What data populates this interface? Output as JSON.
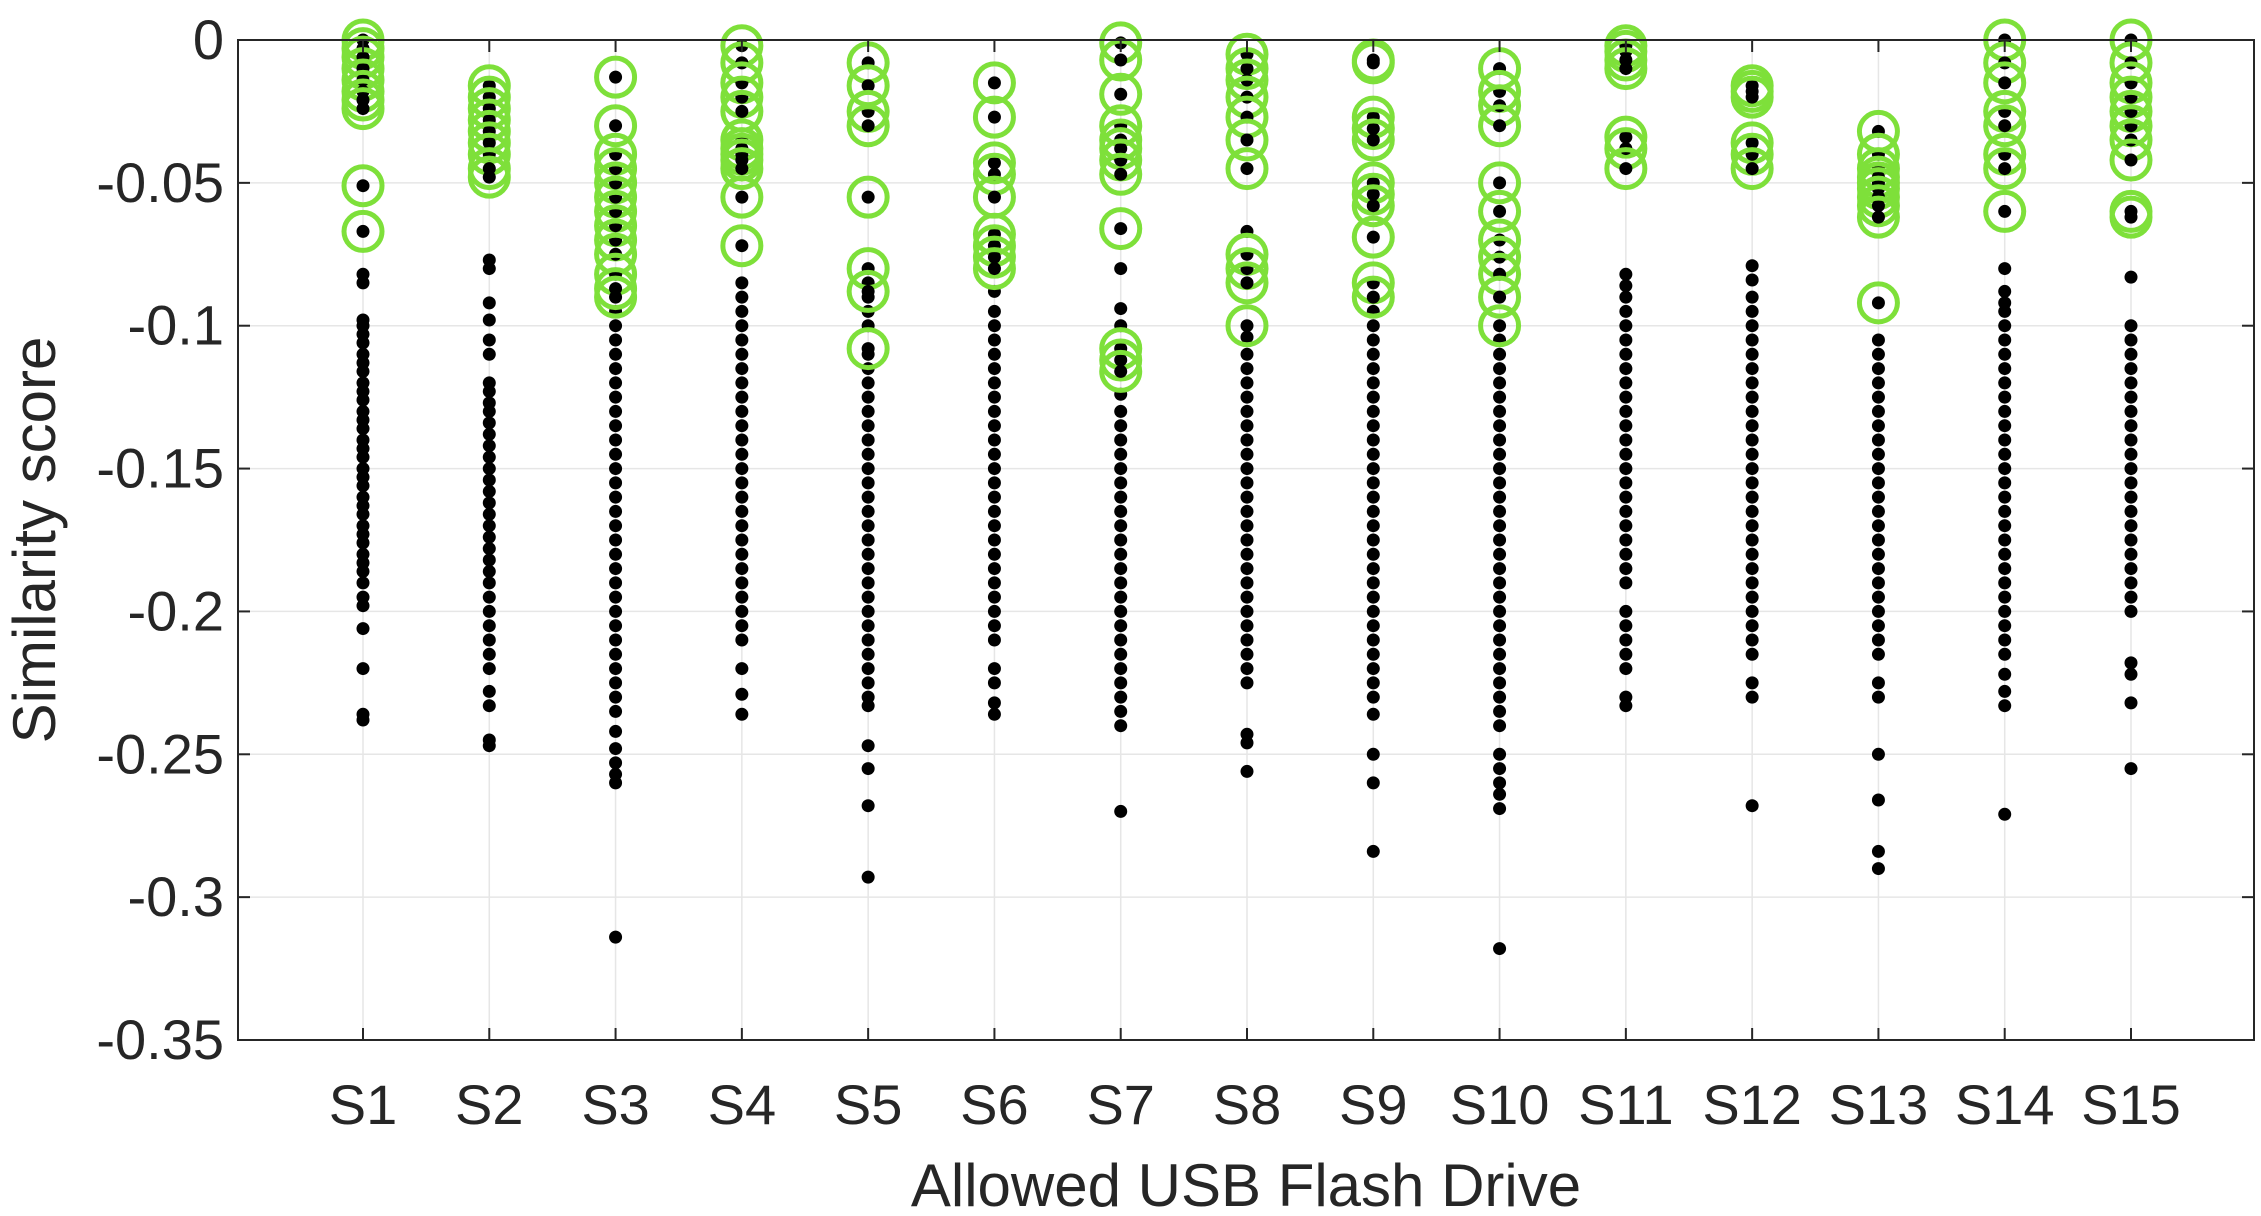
{
  "chart_data": {
    "type": "scatter",
    "xlabel": "Allowed USB Flash Drive",
    "ylabel": "Similarity score",
    "categories": [
      "S1",
      "S2",
      "S3",
      "S4",
      "S5",
      "S6",
      "S7",
      "S8",
      "S9",
      "S10",
      "S11",
      "S12",
      "S13",
      "S14",
      "S15"
    ],
    "ylim": [
      -0.35,
      0
    ],
    "yticks": [
      0,
      -0.05,
      -0.1,
      -0.15,
      -0.2,
      -0.25,
      -0.3,
      -0.35
    ],
    "ytick_labels": [
      "0",
      "-0.05",
      "-0.1",
      "-0.15",
      "-0.2",
      "-0.25",
      "-0.3",
      "-0.35"
    ],
    "grid": true,
    "colors": {
      "points": "#000000",
      "highlight": "#7ee03a",
      "grid": "#e6e6e6",
      "axis": "#262626"
    },
    "series": [
      {
        "marker": "black-dot",
        "values": [
          [
            -0.082,
            -0.085,
            -0.098,
            -0.1,
            -0.103,
            -0.106,
            -0.11,
            -0.113,
            -0.116,
            -0.12,
            -0.123,
            -0.126,
            -0.13,
            -0.133,
            -0.136,
            -0.14,
            -0.143,
            -0.146,
            -0.15,
            -0.153,
            -0.156,
            -0.16,
            -0.163,
            -0.166,
            -0.17,
            -0.173,
            -0.176,
            -0.18,
            -0.183,
            -0.186,
            -0.19,
            -0.195,
            -0.198,
            -0.206,
            -0.22,
            -0.236,
            -0.238
          ],
          [
            -0.077,
            -0.08,
            -0.092,
            -0.098,
            -0.105,
            -0.11,
            -0.12,
            -0.123,
            -0.127,
            -0.13,
            -0.134,
            -0.138,
            -0.142,
            -0.146,
            -0.15,
            -0.154,
            -0.158,
            -0.162,
            -0.166,
            -0.17,
            -0.174,
            -0.178,
            -0.182,
            -0.186,
            -0.19,
            -0.195,
            -0.2,
            -0.205,
            -0.21,
            -0.215,
            -0.22,
            -0.228,
            -0.233,
            -0.245,
            -0.247
          ],
          [
            -0.095,
            -0.1,
            -0.105,
            -0.11,
            -0.115,
            -0.12,
            -0.125,
            -0.13,
            -0.135,
            -0.14,
            -0.145,
            -0.15,
            -0.155,
            -0.16,
            -0.165,
            -0.17,
            -0.175,
            -0.18,
            -0.185,
            -0.19,
            -0.195,
            -0.2,
            -0.205,
            -0.21,
            -0.215,
            -0.22,
            -0.225,
            -0.23,
            -0.235,
            -0.242,
            -0.248,
            -0.253,
            -0.257,
            -0.26,
            -0.314
          ],
          [
            -0.085,
            -0.09,
            -0.095,
            -0.1,
            -0.105,
            -0.11,
            -0.115,
            -0.12,
            -0.125,
            -0.13,
            -0.135,
            -0.14,
            -0.145,
            -0.15,
            -0.155,
            -0.16,
            -0.165,
            -0.17,
            -0.175,
            -0.18,
            -0.185,
            -0.19,
            -0.195,
            -0.2,
            -0.205,
            -0.21,
            -0.22,
            -0.229,
            -0.236
          ],
          [
            -0.085,
            -0.09,
            -0.095,
            -0.1,
            -0.11,
            -0.115,
            -0.12,
            -0.125,
            -0.13,
            -0.135,
            -0.14,
            -0.145,
            -0.15,
            -0.155,
            -0.16,
            -0.165,
            -0.17,
            -0.175,
            -0.18,
            -0.185,
            -0.19,
            -0.195,
            -0.2,
            -0.205,
            -0.21,
            -0.215,
            -0.22,
            -0.225,
            -0.23,
            -0.233,
            -0.247,
            -0.255,
            -0.268,
            -0.293
          ],
          [
            -0.088,
            -0.095,
            -0.1,
            -0.105,
            -0.11,
            -0.115,
            -0.12,
            -0.125,
            -0.13,
            -0.135,
            -0.14,
            -0.145,
            -0.15,
            -0.155,
            -0.16,
            -0.165,
            -0.17,
            -0.175,
            -0.18,
            -0.185,
            -0.19,
            -0.195,
            -0.2,
            -0.205,
            -0.21,
            -0.22,
            -0.225,
            -0.232,
            -0.236
          ],
          [
            -0.08,
            -0.094,
            -0.1,
            -0.124,
            -0.13,
            -0.135,
            -0.14,
            -0.145,
            -0.15,
            -0.155,
            -0.16,
            -0.165,
            -0.17,
            -0.175,
            -0.18,
            -0.185,
            -0.19,
            -0.195,
            -0.2,
            -0.205,
            -0.21,
            -0.215,
            -0.22,
            -0.225,
            -0.23,
            -0.235,
            -0.24,
            -0.27
          ],
          [
            -0.067,
            -0.104,
            -0.11,
            -0.115,
            -0.12,
            -0.125,
            -0.13,
            -0.135,
            -0.14,
            -0.145,
            -0.15,
            -0.155,
            -0.16,
            -0.165,
            -0.17,
            -0.175,
            -0.18,
            -0.185,
            -0.19,
            -0.195,
            -0.2,
            -0.205,
            -0.21,
            -0.215,
            -0.22,
            -0.225,
            -0.243,
            -0.246,
            -0.256
          ],
          [
            -0.095,
            -0.1,
            -0.105,
            -0.11,
            -0.115,
            -0.12,
            -0.125,
            -0.13,
            -0.135,
            -0.14,
            -0.145,
            -0.15,
            -0.155,
            -0.16,
            -0.165,
            -0.17,
            -0.175,
            -0.18,
            -0.185,
            -0.19,
            -0.195,
            -0.2,
            -0.205,
            -0.21,
            -0.215,
            -0.22,
            -0.225,
            -0.23,
            -0.236,
            -0.25,
            -0.26,
            -0.284
          ],
          [
            -0.105,
            -0.11,
            -0.115,
            -0.12,
            -0.125,
            -0.13,
            -0.135,
            -0.14,
            -0.145,
            -0.15,
            -0.155,
            -0.16,
            -0.165,
            -0.17,
            -0.175,
            -0.18,
            -0.185,
            -0.19,
            -0.195,
            -0.2,
            -0.205,
            -0.21,
            -0.215,
            -0.22,
            -0.225,
            -0.23,
            -0.235,
            -0.24,
            -0.25,
            -0.255,
            -0.26,
            -0.264,
            -0.269,
            -0.318
          ],
          [
            -0.082,
            -0.086,
            -0.09,
            -0.095,
            -0.1,
            -0.105,
            -0.11,
            -0.115,
            -0.12,
            -0.125,
            -0.13,
            -0.135,
            -0.14,
            -0.145,
            -0.15,
            -0.155,
            -0.16,
            -0.165,
            -0.17,
            -0.175,
            -0.18,
            -0.185,
            -0.19,
            -0.2,
            -0.205,
            -0.21,
            -0.215,
            -0.22,
            -0.23,
            -0.233
          ],
          [
            -0.079,
            -0.084,
            -0.09,
            -0.095,
            -0.1,
            -0.105,
            -0.11,
            -0.115,
            -0.12,
            -0.125,
            -0.13,
            -0.135,
            -0.14,
            -0.145,
            -0.15,
            -0.155,
            -0.16,
            -0.165,
            -0.17,
            -0.175,
            -0.18,
            -0.185,
            -0.19,
            -0.195,
            -0.2,
            -0.205,
            -0.21,
            -0.215,
            -0.225,
            -0.23,
            -0.268
          ],
          [
            -0.105,
            -0.11,
            -0.115,
            -0.12,
            -0.125,
            -0.13,
            -0.135,
            -0.14,
            -0.145,
            -0.15,
            -0.155,
            -0.16,
            -0.165,
            -0.17,
            -0.175,
            -0.18,
            -0.185,
            -0.19,
            -0.195,
            -0.2,
            -0.205,
            -0.21,
            -0.215,
            -0.225,
            -0.23,
            -0.25,
            -0.266,
            -0.284,
            -0.29
          ],
          [
            -0.08,
            -0.088,
            -0.092,
            -0.095,
            -0.1,
            -0.105,
            -0.11,
            -0.115,
            -0.12,
            -0.125,
            -0.13,
            -0.135,
            -0.14,
            -0.145,
            -0.15,
            -0.155,
            -0.16,
            -0.165,
            -0.17,
            -0.175,
            -0.18,
            -0.185,
            -0.19,
            -0.195,
            -0.2,
            -0.205,
            -0.21,
            -0.215,
            -0.222,
            -0.228,
            -0.233,
            -0.271
          ],
          [
            -0.083,
            -0.1,
            -0.105,
            -0.11,
            -0.115,
            -0.12,
            -0.125,
            -0.13,
            -0.135,
            -0.14,
            -0.145,
            -0.15,
            -0.155,
            -0.16,
            -0.165,
            -0.17,
            -0.175,
            -0.18,
            -0.185,
            -0.19,
            -0.195,
            -0.2,
            -0.218,
            -0.222,
            -0.232,
            -0.255
          ]
        ]
      },
      {
        "marker": "black-dot-in-green-circle",
        "values": [
          [
            0,
            -0.003,
            -0.006,
            -0.01,
            -0.014,
            -0.018,
            -0.021,
            -0.024,
            -0.051,
            -0.067
          ],
          [
            -0.016,
            -0.02,
            -0.024,
            -0.028,
            -0.032,
            -0.036,
            -0.04,
            -0.045,
            -0.048
          ],
          [
            -0.013,
            -0.03,
            -0.04,
            -0.045,
            -0.05,
            -0.055,
            -0.06,
            -0.065,
            -0.07,
            -0.075,
            -0.082,
            -0.087,
            -0.09
          ],
          [
            -0.002,
            -0.008,
            -0.015,
            -0.02,
            -0.025,
            -0.035,
            -0.038,
            -0.04,
            -0.042,
            -0.045,
            -0.055,
            -0.072
          ],
          [
            -0.008,
            -0.016,
            -0.025,
            -0.03,
            -0.055,
            -0.08,
            -0.088,
            -0.108
          ],
          [
            -0.015,
            -0.027,
            -0.043,
            -0.047,
            -0.055,
            -0.068,
            -0.072,
            -0.076,
            -0.08
          ],
          [
            -0.001,
            -0.007,
            -0.019,
            -0.03,
            -0.035,
            -0.038,
            -0.042,
            -0.047,
            -0.066,
            -0.108,
            -0.112,
            -0.116
          ],
          [
            -0.005,
            -0.01,
            -0.014,
            -0.02,
            -0.027,
            -0.035,
            -0.045,
            -0.075,
            -0.08,
            -0.085,
            -0.1
          ],
          [
            -0.007,
            -0.008,
            -0.027,
            -0.031,
            -0.035,
            -0.05,
            -0.054,
            -0.058,
            -0.069,
            -0.085,
            -0.09
          ],
          [
            -0.01,
            -0.018,
            -0.023,
            -0.03,
            -0.05,
            -0.06,
            -0.07,
            -0.076,
            -0.082,
            -0.09,
            -0.1
          ],
          [
            -0.002,
            -0.004,
            -0.007,
            -0.01,
            -0.034,
            -0.038,
            -0.045
          ],
          [
            -0.016,
            -0.018,
            -0.02,
            -0.036,
            -0.04,
            -0.045
          ],
          [
            -0.032,
            -0.04,
            -0.045,
            -0.048,
            -0.05,
            -0.052,
            -0.055,
            -0.058,
            -0.062,
            -0.092
          ],
          [
            0,
            -0.008,
            -0.015,
            -0.025,
            -0.03,
            -0.04,
            -0.045,
            -0.06
          ],
          [
            0,
            -0.008,
            -0.015,
            -0.02,
            -0.025,
            -0.03,
            -0.035,
            -0.042,
            -0.06,
            -0.062
          ]
        ]
      }
    ]
  }
}
